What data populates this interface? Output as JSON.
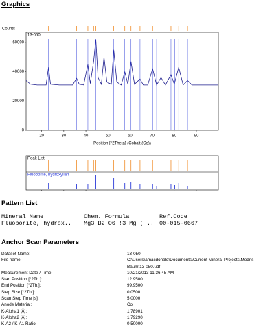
{
  "header": {
    "title": "Graphics"
  },
  "chart_data": {
    "type": "line",
    "y_label": "Counts",
    "x_label": "Position [°2Theta] (Cobalt (Co))",
    "x": [
      12.95,
      15,
      18,
      20,
      22,
      23.1,
      24,
      28,
      30,
      34,
      35.8,
      37,
      39,
      40.9,
      42,
      43.5,
      44.5,
      45.5,
      47,
      48.2,
      49.5,
      51.5,
      52.6,
      54,
      56,
      57.6,
      59,
      60.4,
      62,
      64.5,
      66,
      68,
      70.2,
      72,
      74,
      76,
      78.5,
      80,
      82,
      84,
      86,
      88,
      90,
      93,
      96,
      99.95
    ],
    "series": [
      {
        "name": "13-050",
        "color": "#1c1c8c",
        "values": [
          34000,
          31500,
          31000,
          31000,
          31000,
          43000,
          31500,
          31000,
          31000,
          31000,
          35500,
          31500,
          31000,
          45000,
          32000,
          47000,
          62000,
          36000,
          31500,
          50000,
          33000,
          31500,
          55000,
          33000,
          31000,
          40000,
          31500,
          47000,
          31500,
          35000,
          31000,
          31000,
          42000,
          31000,
          36000,
          31000,
          38000,
          31500,
          43000,
          31000,
          34000,
          31000,
          31000,
          31000,
          31000,
          31000
        ]
      }
    ],
    "xlim": [
      12.95,
      99.95
    ],
    "ylim": [
      0,
      67000
    ],
    "xticks": [
      20,
      30,
      40,
      50,
      60,
      70,
      80,
      90
    ],
    "yticks": [
      0,
      20000,
      40000,
      60000
    ],
    "peak_list": {
      "title": "Peak List",
      "color": "#f08c28",
      "positions": [
        23.1,
        28.3,
        35.8,
        40.9,
        43.5,
        44.5,
        48.2,
        52.6,
        57.6,
        60.4,
        64.5,
        70.2,
        74,
        78.5,
        82,
        86,
        88
      ]
    },
    "reference": {
      "name": "Fluoborite, hydroxylian",
      "color": "#2b3bd8",
      "positions": [
        23.1,
        35.8,
        40.9,
        44.5,
        48.2,
        52.6,
        57.6,
        60.4,
        62.2,
        64.5,
        70.2,
        72,
        74,
        78.5,
        80.2,
        82,
        86
      ],
      "intensities": [
        45,
        40,
        40,
        100,
        60,
        80,
        45,
        55,
        30,
        35,
        40,
        25,
        30,
        35,
        30,
        45,
        25
      ]
    }
  },
  "pattern_list": {
    "title": "Pattern List",
    "columns": [
      "Mineral Name",
      "Chem. Formula",
      "Ref.Code"
    ],
    "rows": [
      [
        "Fluoborite, hydrox..",
        "Mg3 B2 O6 !3 Mg ( ..",
        "00-015-0667"
      ]
    ]
  },
  "anchor_scan": {
    "title": "Anchor Scan Parameters",
    "rows": [
      [
        "Dataset Name:",
        "13-050"
      ],
      [
        "File name:",
        "C:\\Users\\amacdonald\\Documents\\Current Mineral Projects\\Modris Baum\\13-050.udf"
      ],
      [
        "Measurement Date / Time:",
        "10/21/2013 11:36:45 AM"
      ],
      [
        "Start Position [°2Th.]:",
        "12.9500"
      ],
      [
        "End Position [°2Th.]:",
        "99.9500"
      ],
      [
        "Step Size [°2Th.]:",
        "0.0500"
      ],
      [
        "Scan Step Time [s]:",
        "5.0000"
      ],
      [
        "Anode Material:",
        "Co"
      ],
      [
        "K-Alpha1 [Å]:",
        "1.78901"
      ],
      [
        "K-Alpha2 [Å]:",
        "1.79290"
      ],
      [
        "K-A2 / K-A1 Ratio:",
        "0.50000"
      ]
    ]
  }
}
